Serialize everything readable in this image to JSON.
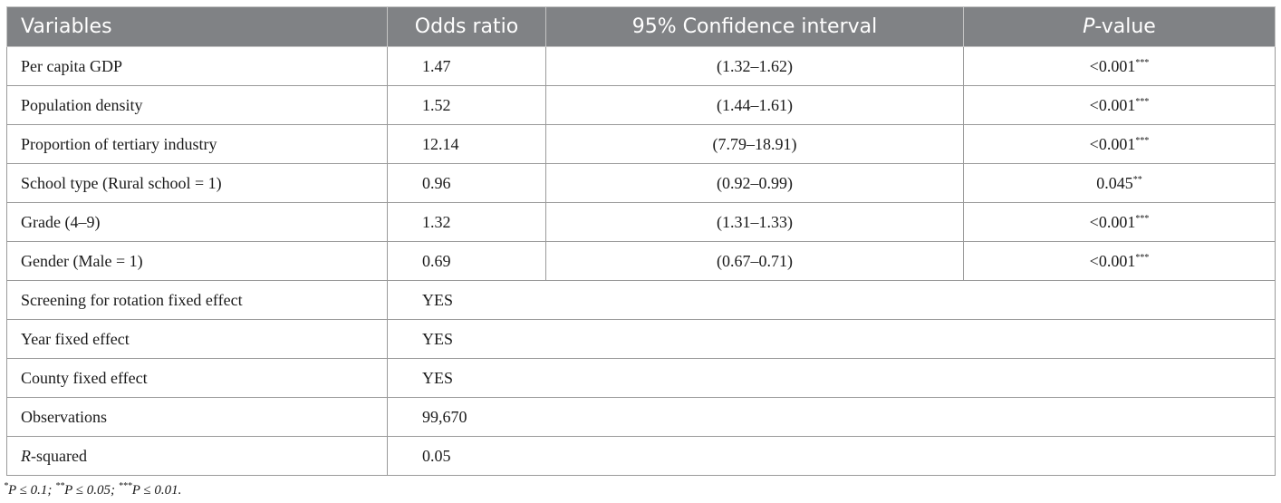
{
  "headers": {
    "variables": "Variables",
    "odds_ratio": "Odds ratio",
    "ci": "95% Confidence interval",
    "pvalue_italic": "P",
    "pvalue_rest": "-value"
  },
  "rows": [
    {
      "variable": "Per capita GDP",
      "odds_ratio": "1.47",
      "ci": "(1.32–1.62)",
      "pvalue": "<0.001",
      "stars": "***"
    },
    {
      "variable": "Population density",
      "odds_ratio": "1.52",
      "ci": "(1.44–1.61)",
      "pvalue": "<0.001",
      "stars": "***"
    },
    {
      "variable": "Proportion of tertiary industry",
      "odds_ratio": "12.14",
      "ci": "(7.79–18.91)",
      "pvalue": "<0.001",
      "stars": "***"
    },
    {
      "variable": "School type (Rural school = 1)",
      "odds_ratio": "0.96",
      "ci": "(0.92–0.99)",
      "pvalue": "0.045",
      "stars": "**"
    },
    {
      "variable": "Grade (4–9)",
      "odds_ratio": "1.32",
      "ci": "(1.31–1.33)",
      "pvalue": "<0.001",
      "stars": "***"
    },
    {
      "variable": "Gender (Male = 1)",
      "odds_ratio": "0.69",
      "ci": "(0.67–0.71)",
      "pvalue": "<0.001",
      "stars": "***"
    }
  ],
  "extra_rows": [
    {
      "variable": "Screening for rotation fixed effect",
      "value": "YES"
    },
    {
      "variable": "Year fixed effect",
      "value": "YES"
    },
    {
      "variable": "County fixed effect",
      "value": "YES"
    },
    {
      "variable": "Observations",
      "value": "99,670"
    }
  ],
  "rsquared": {
    "italic": "R",
    "rest": "-squared",
    "value": "0.05"
  },
  "footnote": {
    "s1": "*",
    "t1": "P ≤ 0.1; ",
    "s2": "**",
    "t2": "P ≤ 0.05; ",
    "s3": "***",
    "t3": "P ≤ 0.01."
  }
}
